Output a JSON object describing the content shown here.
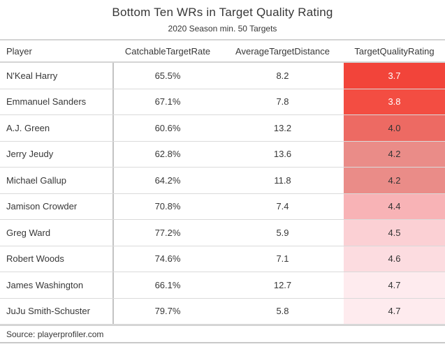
{
  "header": {
    "title": "Bottom Ten WRs in Target Quality Rating",
    "subtitle": "2020 Season min. 50 Targets"
  },
  "footer": {
    "source_note": "Source: playerprofiler.com"
  },
  "colors": {
    "rating_scale_low": "#f2443a",
    "rating_scale_high": "#feebee",
    "text": "#373737",
    "header_border": "#d4d4d4",
    "row_divider": "#dadada",
    "player_column_divider": "#c3c3c3"
  },
  "chart_data": {
    "type": "table",
    "title": "Bottom Ten WRs in Target Quality Rating",
    "subtitle": "2020 Season min. 50 Targets",
    "source": "Source: playerprofiler.com",
    "columns": [
      "Player",
      "CatchableTargetRate",
      "AverageTargetDistance",
      "TargetQualityRating"
    ],
    "conditional_format": "TargetQualityRating column shaded from saturated red (lowest rating 3.7) to near-white pink (highest rating 4.7)",
    "rows": [
      {
        "player": "N'Keal Harry",
        "catchable_target_rate": "65.5%",
        "average_target_distance": "8.2",
        "target_quality_rating": "3.7",
        "rating_bg": "#f2443a",
        "rating_fg": "#ffffff"
      },
      {
        "player": "Emmanuel Sanders",
        "catchable_target_rate": "67.1%",
        "average_target_distance": "7.8",
        "target_quality_rating": "3.8",
        "rating_bg": "#f34d42",
        "rating_fg": "#ffffff"
      },
      {
        "player": "A.J. Green",
        "catchable_target_rate": "60.6%",
        "average_target_distance": "13.2",
        "target_quality_rating": "4.0",
        "rating_bg": "#ed6a63",
        "rating_fg": "#333333"
      },
      {
        "player": "Jerry Jeudy",
        "catchable_target_rate": "62.8%",
        "average_target_distance": "13.6",
        "target_quality_rating": "4.2",
        "rating_bg": "#ea8c88",
        "rating_fg": "#333333"
      },
      {
        "player": "Michael Gallup",
        "catchable_target_rate": "64.2%",
        "average_target_distance": "11.8",
        "target_quality_rating": "4.2",
        "rating_bg": "#ea8c88",
        "rating_fg": "#333333"
      },
      {
        "player": "Jamison Crowder",
        "catchable_target_rate": "70.8%",
        "average_target_distance": "7.4",
        "target_quality_rating": "4.4",
        "rating_bg": "#f8b3b6",
        "rating_fg": "#333333"
      },
      {
        "player": "Greg Ward",
        "catchable_target_rate": "77.2%",
        "average_target_distance": "5.9",
        "target_quality_rating": "4.5",
        "rating_bg": "#fbd0d4",
        "rating_fg": "#333333"
      },
      {
        "player": "Robert Woods",
        "catchable_target_rate": "74.6%",
        "average_target_distance": "7.1",
        "target_quality_rating": "4.6",
        "rating_bg": "#fcdce0",
        "rating_fg": "#333333"
      },
      {
        "player": "James Washington",
        "catchable_target_rate": "66.1%",
        "average_target_distance": "12.7",
        "target_quality_rating": "4.7",
        "rating_bg": "#feebee",
        "rating_fg": "#333333"
      },
      {
        "player": "JuJu Smith-Schuster",
        "catchable_target_rate": "79.7%",
        "average_target_distance": "5.8",
        "target_quality_rating": "4.7",
        "rating_bg": "#feebee",
        "rating_fg": "#333333"
      }
    ]
  }
}
